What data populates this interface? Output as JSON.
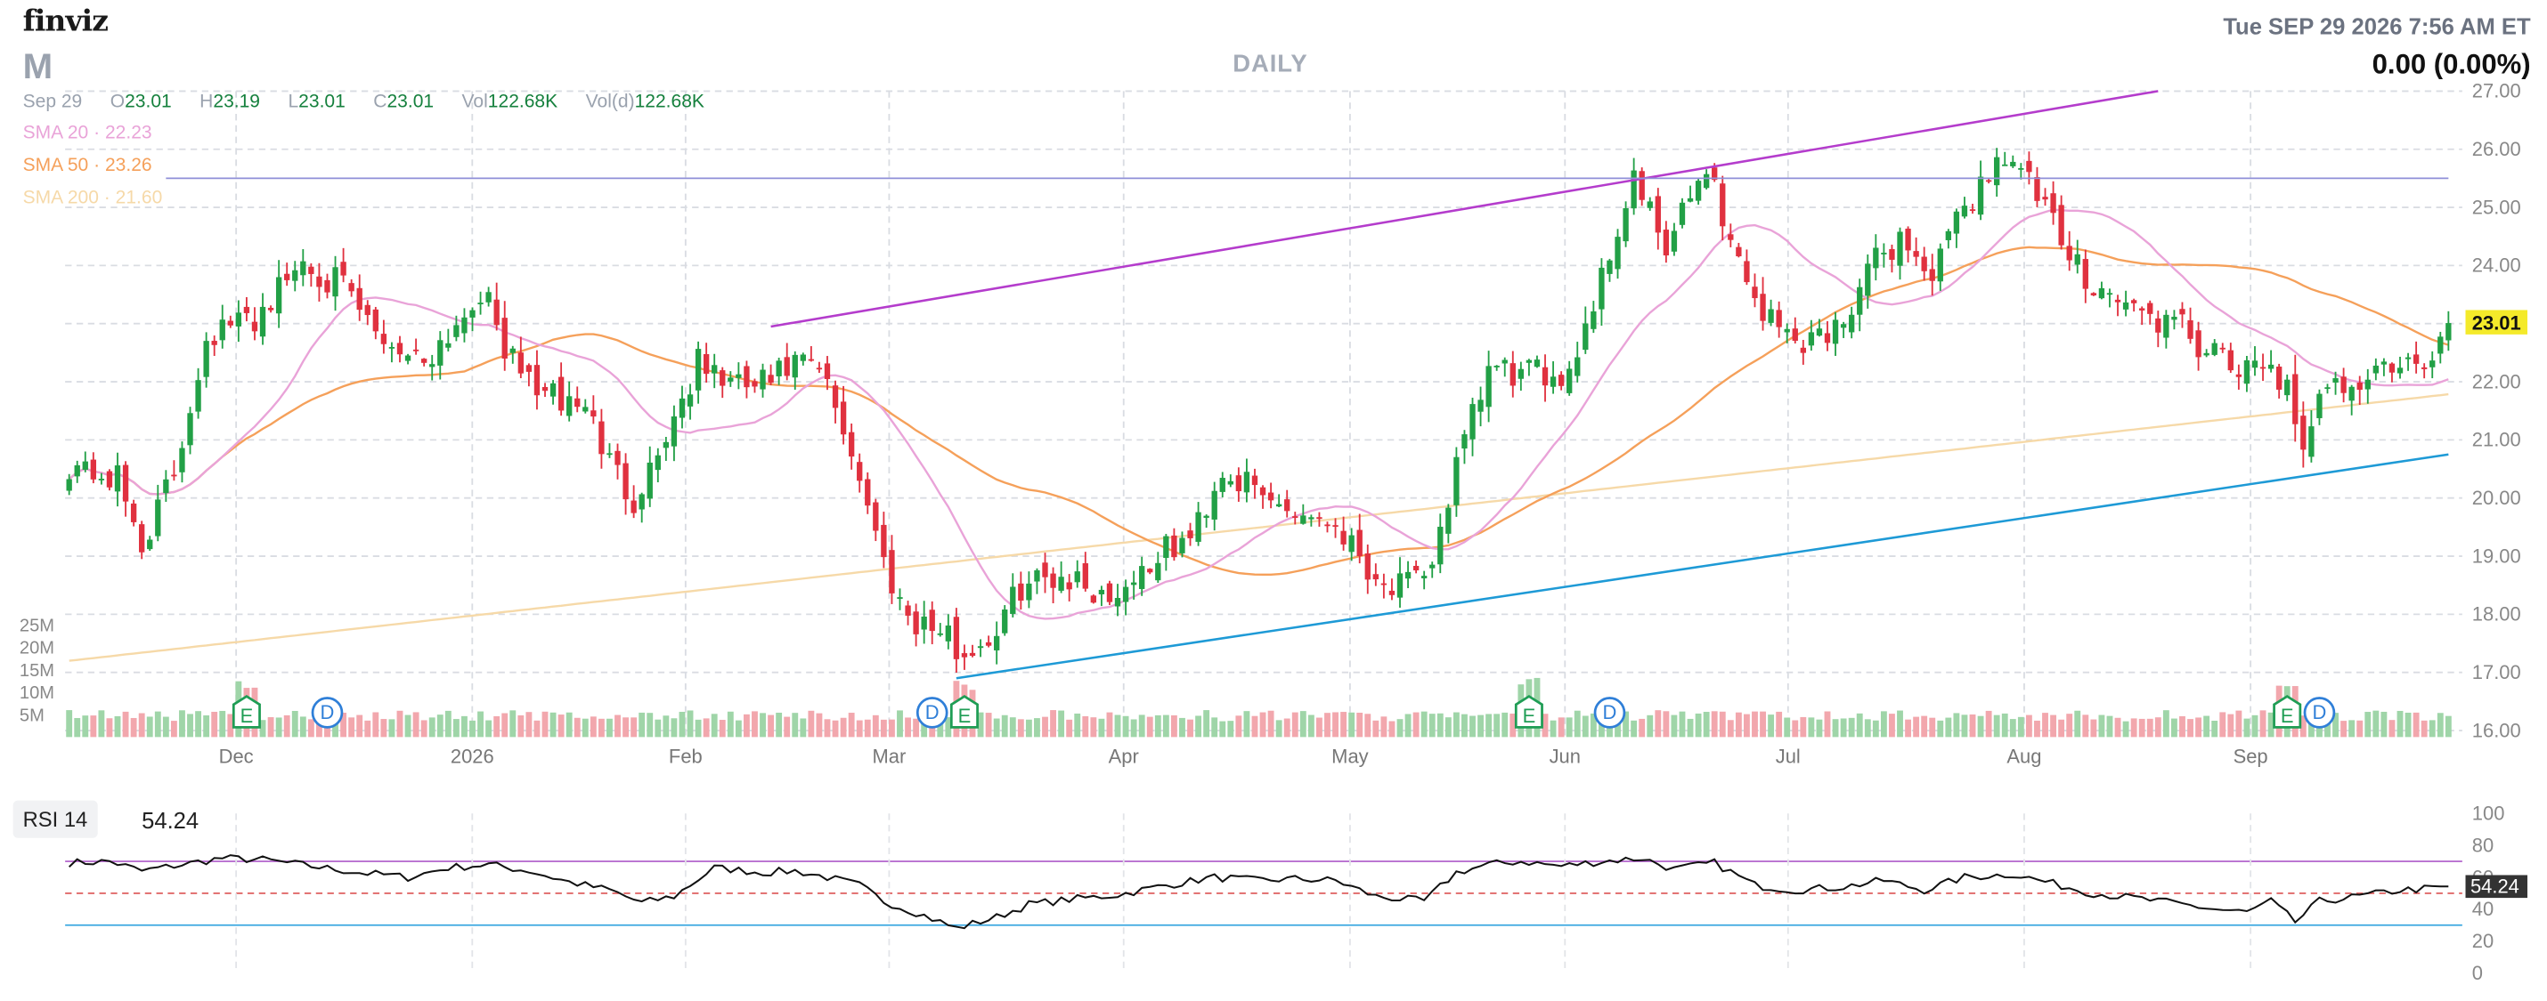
{
  "header": {
    "logo": "finviz",
    "ticker": "M",
    "timeframe": "DAILY",
    "datetime": "Tue SEP 29 2026 7:56 AM ET",
    "change": "0.00 (0.00%)"
  },
  "ohlc": {
    "date": "Sep 29",
    "items": [
      {
        "label": "O",
        "value": "23.01"
      },
      {
        "label": "H",
        "value": "23.19"
      },
      {
        "label": "L",
        "value": "23.01"
      },
      {
        "label": "C",
        "value": "23.01"
      },
      {
        "label": "Vol",
        "value": "122.68K"
      },
      {
        "label": "Vol(d)",
        "value": "122.68K"
      }
    ]
  },
  "sma": [
    {
      "label": "SMA 20",
      "value": "22.23",
      "color": "#e9a3d8"
    },
    {
      "label": "SMA 50",
      "value": "23.26",
      "color": "#f5a05a"
    },
    {
      "label": "SMA 200",
      "value": "21.60",
      "color": "#f6d9a8"
    }
  ],
  "colors": {
    "up": "#22a046",
    "down": "#e0313f",
    "vol_up": "#9fd5a8",
    "vol_down": "#f2a7ad",
    "upper_trend": "#b43ccc",
    "lower_trend": "#1e9ad6",
    "resistance": "#8f8fd8",
    "price_badge": "#f4ea2a"
  },
  "chart_data": [
    {
      "type": "candlestick",
      "title": "",
      "x_tick_labels": [
        "Dec",
        "2026",
        "Feb",
        "Mar",
        "Apr",
        "May",
        "Jun",
        "Jul",
        "Aug",
        "Sep"
      ],
      "y_tick_labels": [
        "27.00",
        "26.00",
        "25.00",
        "24.00",
        "23.00",
        "22.00",
        "21.00",
        "20.00",
        "19.00",
        "18.00",
        "17.00",
        "16.00"
      ],
      "ylim": [
        16,
        27
      ],
      "last_price": "23.01",
      "close_path": [
        [
          0,
          20.6
        ],
        [
          6,
          20.3
        ],
        [
          9,
          19.2
        ],
        [
          13,
          20.4
        ],
        [
          17,
          22.8
        ],
        [
          23,
          23.1
        ],
        [
          29,
          24.1
        ],
        [
          34,
          23.6
        ],
        [
          38,
          22.8
        ],
        [
          44,
          22.4
        ],
        [
          48,
          23.0
        ],
        [
          51,
          23.6
        ],
        [
          55,
          22.3
        ],
        [
          60,
          21.7
        ],
        [
          64,
          21.6
        ],
        [
          67,
          20.6
        ],
        [
          70,
          20.0
        ],
        [
          73,
          20.8
        ],
        [
          78,
          22.3
        ],
        [
          83,
          21.9
        ],
        [
          87,
          22.0
        ],
        [
          90,
          22.3
        ],
        [
          93,
          22.2
        ],
        [
          96,
          21.2
        ],
        [
          98,
          20.4
        ],
        [
          101,
          18.9
        ],
        [
          104,
          18.0
        ],
        [
          108,
          17.7
        ],
        [
          111,
          17.3
        ],
        [
          115,
          17.7
        ],
        [
          118,
          18.5
        ],
        [
          123,
          18.7
        ],
        [
          129,
          18.3
        ],
        [
          135,
          19.0
        ],
        [
          139,
          19.3
        ],
        [
          143,
          20.5
        ],
        [
          148,
          20.0
        ],
        [
          152,
          19.8
        ],
        [
          157,
          19.6
        ],
        [
          163,
          18.5
        ],
        [
          168,
          18.5
        ],
        [
          172,
          20.5
        ],
        [
          176,
          22.2
        ],
        [
          181,
          22.1
        ],
        [
          186,
          22.2
        ],
        [
          190,
          23.8
        ],
        [
          194,
          25.5
        ],
        [
          198,
          24.2
        ],
        [
          203,
          25.8
        ],
        [
          206,
          24.4
        ],
        [
          210,
          23.2
        ],
        [
          214,
          22.7
        ],
        [
          219,
          22.9
        ],
        [
          223,
          23.9
        ],
        [
          227,
          24.5
        ],
        [
          231,
          23.8
        ],
        [
          235,
          25.0
        ],
        [
          240,
          26.0
        ],
        [
          244,
          25.2
        ],
        [
          248,
          24.1
        ],
        [
          253,
          23.5
        ],
        [
          258,
          23.1
        ],
        [
          262,
          22.9
        ],
        [
          266,
          22.4
        ],
        [
          270,
          22.1
        ],
        [
          273,
          22.4
        ],
        [
          275,
          21.8
        ],
        [
          277,
          20.6
        ],
        [
          280,
          22.1
        ],
        [
          284,
          22.0
        ],
        [
          288,
          22.3
        ],
        [
          293,
          22.2
        ],
        [
          295,
          23.01
        ]
      ],
      "events": [
        {
          "label": "E",
          "kind": "earnings",
          "bar": 22
        },
        {
          "label": "D",
          "kind": "dividend",
          "bar": 32
        },
        {
          "label": "D",
          "kind": "dividend",
          "bar": 107
        },
        {
          "label": "E",
          "kind": "earnings",
          "bar": 111
        },
        {
          "label": "E",
          "kind": "earnings",
          "bar": 181
        },
        {
          "label": "D",
          "kind": "dividend",
          "bar": 191
        },
        {
          "label": "E",
          "kind": "earnings",
          "bar": 275
        },
        {
          "label": "D",
          "kind": "dividend",
          "bar": 279
        }
      ],
      "trendlines": [
        {
          "name": "upper",
          "points": [
            [
              87,
              22.95
            ],
            [
              259,
              27.0
            ]
          ]
        },
        {
          "name": "lower",
          "points": [
            [
              110,
              16.9
            ],
            [
              295,
              20.75
            ]
          ]
        },
        {
          "name": "resistance",
          "points": [
            [
              12,
              25.5
            ],
            [
              295,
              25.5
            ]
          ]
        }
      ]
    },
    {
      "type": "bar",
      "title": "Volume",
      "y_tick_labels": [
        "25M",
        "20M",
        "15M",
        "10M",
        "5M"
      ],
      "ylim": [
        0,
        25000000
      ]
    },
    {
      "type": "line",
      "title": "RSI 14",
      "label": "RSI 14",
      "value": "54.24",
      "y_tick_labels": [
        "100",
        "80",
        "60",
        "40",
        "20",
        "0"
      ],
      "ylim": [
        0,
        100
      ],
      "overbought": 70,
      "oversold": 30,
      "midline": 50,
      "rsi_path": [
        [
          0,
          69
        ],
        [
          5,
          70
        ],
        [
          9,
          64
        ],
        [
          14,
          68
        ],
        [
          19,
          72
        ],
        [
          24,
          71
        ],
        [
          30,
          67
        ],
        [
          36,
          63
        ],
        [
          42,
          60
        ],
        [
          47,
          66
        ],
        [
          52,
          68
        ],
        [
          57,
          64
        ],
        [
          62,
          57
        ],
        [
          67,
          52
        ],
        [
          71,
          44
        ],
        [
          75,
          48
        ],
        [
          80,
          66
        ],
        [
          86,
          63
        ],
        [
          90,
          64
        ],
        [
          94,
          60
        ],
        [
          98,
          55
        ],
        [
          101,
          45
        ],
        [
          105,
          38
        ],
        [
          110,
          28
        ],
        [
          115,
          35
        ],
        [
          119,
          43
        ],
        [
          124,
          46
        ],
        [
          130,
          49
        ],
        [
          136,
          55
        ],
        [
          142,
          60
        ],
        [
          147,
          58
        ],
        [
          152,
          59
        ],
        [
          157,
          58
        ],
        [
          162,
          48
        ],
        [
          168,
          45
        ],
        [
          172,
          63
        ],
        [
          176,
          68
        ],
        [
          180,
          70
        ],
        [
          185,
          67
        ],
        [
          190,
          70
        ],
        [
          195,
          72
        ],
        [
          199,
          65
        ],
        [
          204,
          69
        ],
        [
          209,
          55
        ],
        [
          214,
          52
        ],
        [
          220,
          54
        ],
        [
          225,
          58
        ],
        [
          230,
          52
        ],
        [
          235,
          60
        ],
        [
          241,
          62
        ],
        [
          246,
          56
        ],
        [
          251,
          50
        ],
        [
          256,
          47
        ],
        [
          262,
          43
        ],
        [
          266,
          40
        ],
        [
          270,
          38
        ],
        [
          273,
          45
        ],
        [
          276,
          32
        ],
        [
          279,
          45
        ],
        [
          284,
          48
        ],
        [
          289,
          52
        ],
        [
          293,
          53
        ],
        [
          295,
          54.24
        ]
      ]
    }
  ]
}
